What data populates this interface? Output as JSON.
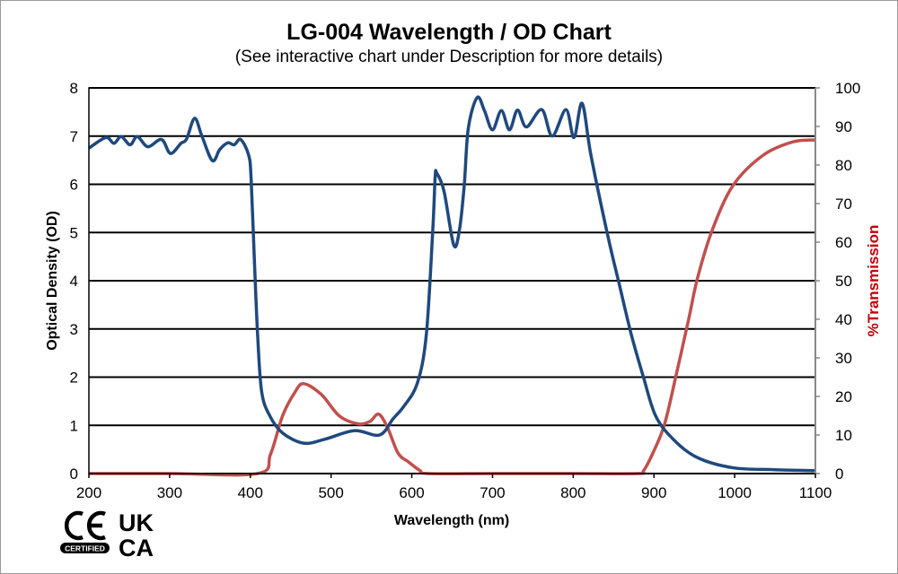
{
  "chart_data": {
    "type": "line",
    "title": "LG-004 Wavelength / OD Chart",
    "subtitle": "(See interactive chart under Description for more details)",
    "xlabel": "Wavelength (nm)",
    "ylabel": "Optical Density (OD)",
    "y2label": "%Transmission",
    "xlim": [
      200,
      1100
    ],
    "ylim": [
      0,
      8
    ],
    "y2lim": [
      0,
      100
    ],
    "xticks": [
      200,
      300,
      400,
      500,
      600,
      700,
      800,
      900,
      1000,
      1100
    ],
    "yticks": [
      0,
      1,
      2,
      3,
      4,
      5,
      6,
      7,
      8
    ],
    "y2ticks": [
      0,
      10,
      20,
      30,
      40,
      50,
      60,
      70,
      80,
      90,
      100
    ],
    "grid": "horizontal",
    "colors": {
      "od": "#1f497d",
      "transmission": "#c0504d",
      "y2label": "#c0000a"
    },
    "series": [
      {
        "axis": "left",
        "x": [
          200,
          221,
          231,
          240,
          251,
          260,
          273,
          290,
          301,
          314,
          321,
          331,
          340,
          353,
          362,
          372,
          380,
          388,
          398,
          401,
          405,
          409,
          414,
          424,
          440,
          466,
          492,
          529,
          560,
          577,
          590,
          607,
          618,
          626,
          629,
          631,
          640,
          652,
          659,
          665,
          670,
          681,
          690,
          700,
          711,
          721,
          731,
          742,
          761,
          774,
          791,
          801,
          811,
          822,
          843,
          857,
          872,
          887,
          902,
          924,
          954,
          998,
          1050,
          1100
        ],
        "y": [
          6.75,
          6.97,
          6.85,
          6.99,
          6.82,
          6.99,
          6.78,
          6.93,
          6.64,
          6.85,
          6.94,
          7.37,
          7.0,
          6.49,
          6.72,
          6.86,
          6.82,
          6.93,
          6.6,
          6.1,
          4.43,
          2.88,
          1.7,
          1.2,
          0.84,
          0.63,
          0.71,
          0.89,
          0.8,
          1.14,
          1.39,
          1.88,
          2.88,
          5.05,
          6.16,
          6.23,
          5.85,
          4.74,
          5.05,
          5.98,
          7.16,
          7.8,
          7.53,
          7.13,
          7.53,
          7.13,
          7.54,
          7.19,
          7.55,
          7.0,
          7.55,
          6.97,
          7.68,
          6.6,
          4.92,
          3.93,
          2.88,
          2.0,
          1.2,
          0.71,
          0.33,
          0.12,
          0.08,
          0.06
        ]
      },
      {
        "axis": "right",
        "x": [
          200,
          300,
          409,
          425,
          440,
          455,
          466,
          488,
          510,
          533,
          548,
          559,
          570,
          583,
          596,
          610,
          620,
          700,
          800,
          880,
          887,
          898,
          913,
          928,
          943,
          954,
          972,
          998,
          1035,
          1072,
          1100
        ],
        "y": [
          0,
          0,
          0,
          5,
          15,
          21,
          23.3,
          20.5,
          15,
          12.9,
          13.5,
          15.4,
          11.9,
          5.3,
          3,
          0.8,
          0,
          0,
          0,
          0,
          0.7,
          5,
          12.7,
          26,
          40,
          50.7,
          63,
          74.7,
          82.5,
          86,
          86.5
        ]
      }
    ]
  },
  "logos": {
    "ce": "CE",
    "ce_badge": "CERTIFIED",
    "ukca_top": "UK",
    "ukca_bottom": "CA"
  }
}
